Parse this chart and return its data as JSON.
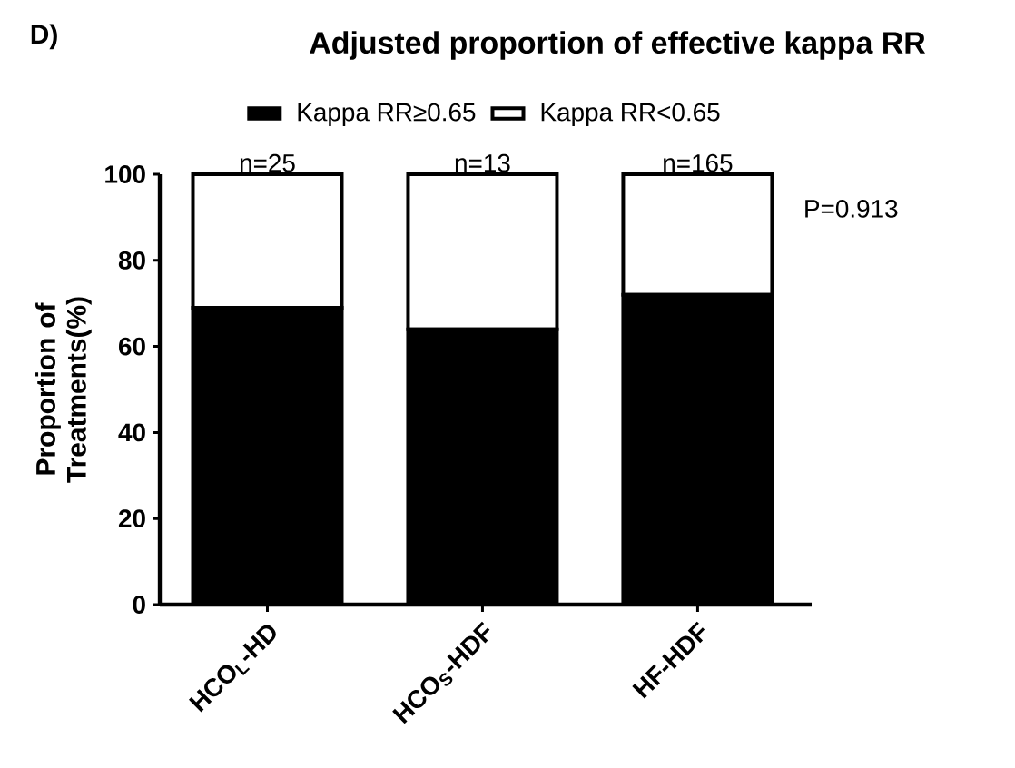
{
  "chart_data": {
    "type": "bar",
    "stacked": true,
    "title": "Adjusted proportion of effective kappa RR",
    "categories": [
      "HCO$_{L}$-HD",
      "HCO$_{S}$-HDF",
      "HF-HDF"
    ],
    "series": [
      {
        "name": "Kappa RR≥0.65",
        "color": "#000000",
        "values": [
          69,
          64,
          72
        ]
      },
      {
        "name": "Kappa RR<0.65",
        "color": "#ffffff",
        "values": [
          31,
          36,
          28
        ]
      }
    ],
    "ylabel": "Proportion of Treatments(%)",
    "ylim": [
      0,
      100
    ],
    "yticks": [
      0,
      20,
      40,
      60,
      80,
      100
    ],
    "legend": "top",
    "annotations": [
      "D)",
      "P=0.913",
      {
        "text": "n=25",
        "x": "HCO$_{L}$-HD",
        "y": 100
      },
      {
        "text": "n=13",
        "x": "HCO$_{S}$-HDF",
        "y": 100
      },
      {
        "text": "n=165",
        "x": "HF-HDF",
        "y": 100
      }
    ]
  }
}
